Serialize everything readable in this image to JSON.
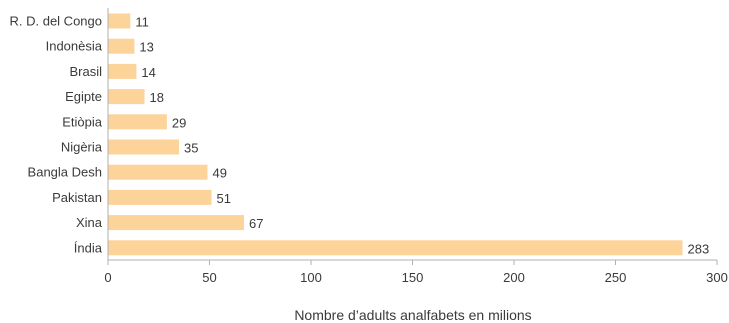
{
  "chart_data": {
    "type": "bar",
    "orientation": "horizontal",
    "categories": [
      "R. D. del Congo",
      "Indonèsia",
      "Brasil",
      "Egipte",
      "Etiòpia",
      "Nigèria",
      "Bangla Desh",
      "Pakistan",
      "Xina",
      "Índia"
    ],
    "values": [
      11,
      13,
      14,
      18,
      29,
      35,
      49,
      51,
      67,
      283
    ],
    "data_labels": [
      "11",
      "13",
      "14",
      "18",
      "29",
      "35",
      "49",
      "51",
      "67",
      "283"
    ],
    "title": "",
    "xlabel": "Nombre d’adults analfabets en milions",
    "ylabel": "",
    "xlim": [
      0,
      300
    ],
    "x_ticks": [
      0,
      50,
      100,
      150,
      200,
      250,
      300
    ],
    "x_tick_labels": [
      "0",
      "50",
      "100",
      "150",
      "200",
      "250",
      "300"
    ],
    "grid": false,
    "bar_color": "#fcd399",
    "axis_color": "#b0b0b0"
  }
}
